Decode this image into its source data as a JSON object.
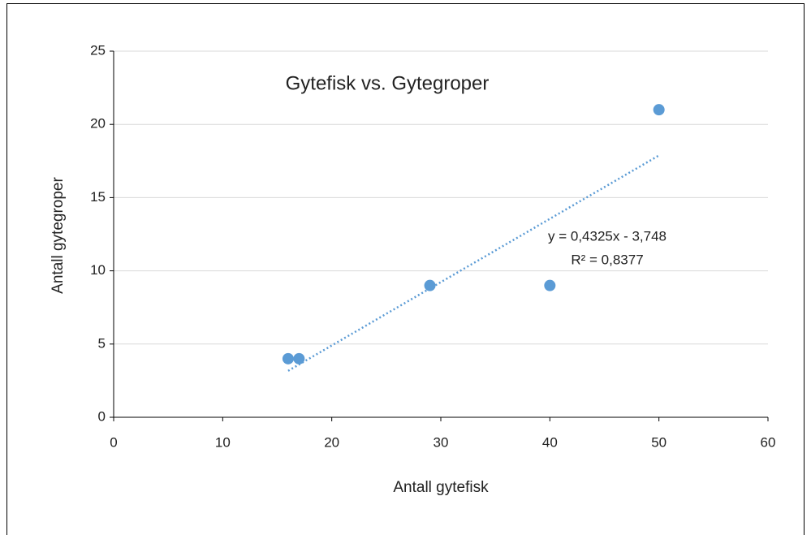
{
  "chart_data": {
    "type": "scatter",
    "title": "Gytefisk vs. Gytegroper",
    "x_label": "Antall gytefisk",
    "y_label": "Antall gytegroper",
    "series": [
      {
        "name": "Antall gytegroper",
        "color": "#5b9bd5",
        "x": [
          16,
          17,
          29,
          40,
          50
        ],
        "values": [
          4,
          4,
          9,
          9,
          21
        ]
      }
    ],
    "trendline": {
      "equation": "y = 0,4325x - 3,748",
      "r_squared": "R² = 0,8377",
      "slope": 0.4325,
      "intercept": -3.748,
      "color": "#5b9bd5"
    },
    "xlim": [
      0,
      60
    ],
    "xticks": [
      0,
      10,
      20,
      30,
      40,
      50,
      60
    ],
    "ylim": [
      0,
      25
    ],
    "yticks": [
      0,
      5,
      10,
      15,
      20,
      25
    ],
    "grid": true
  }
}
